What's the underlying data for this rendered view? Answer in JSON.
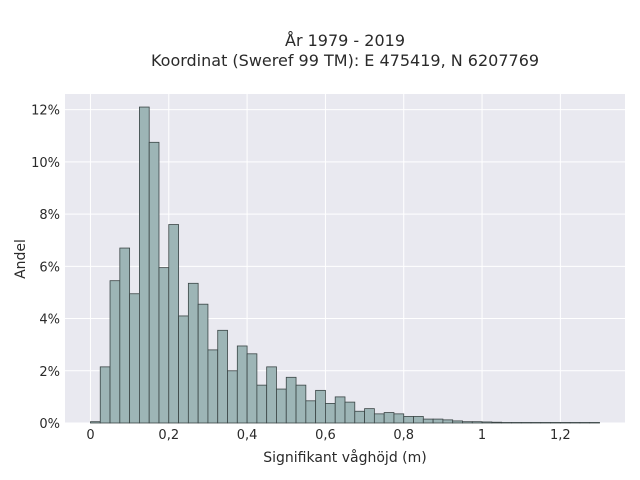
{
  "chart_data": {
    "type": "bar",
    "title": "År 1979 - 2019",
    "subtitle": "Koordinat (Sweref 99 TM): E 475419, N 6207769",
    "xlabel": "Signifikant våghöjd (m)",
    "ylabel": "Andel",
    "xlim": [
      -0.065,
      1.365
    ],
    "ylim": [
      0,
      12.6
    ],
    "x_ticks": [
      0,
      0.2,
      0.4,
      0.6,
      0.8,
      1,
      1.2
    ],
    "x_tick_labels": [
      "0",
      "0,2",
      "0,4",
      "0,6",
      "0,8",
      "1",
      "1,2"
    ],
    "y_ticks": [
      0,
      2,
      4,
      6,
      8,
      10,
      12
    ],
    "y_tick_labels": [
      "0%",
      "2%",
      "4%",
      "6%",
      "8%",
      "10%",
      "12%"
    ],
    "grid": true,
    "bin_width": 0.025,
    "bins_start": [
      0,
      0.025,
      0.05,
      0.075,
      0.1,
      0.125,
      0.15,
      0.175,
      0.2,
      0.225,
      0.25,
      0.275,
      0.3,
      0.325,
      0.35,
      0.375,
      0.4,
      0.425,
      0.45,
      0.475,
      0.5,
      0.525,
      0.55,
      0.575,
      0.6,
      0.625,
      0.65,
      0.675,
      0.7,
      0.725,
      0.75,
      0.775,
      0.8,
      0.825,
      0.85,
      0.875,
      0.9,
      0.925,
      0.95,
      0.975,
      1.0,
      1.025,
      1.05,
      1.075,
      1.1,
      1.125,
      1.15,
      1.175,
      1.2,
      1.225,
      1.25,
      1.275
    ],
    "values": [
      0.05,
      2.15,
      5.45,
      6.7,
      4.95,
      12.1,
      10.75,
      5.95,
      7.6,
      4.1,
      5.35,
      4.55,
      2.8,
      3.55,
      2.0,
      2.95,
      2.65,
      1.45,
      2.15,
      1.3,
      1.75,
      1.45,
      0.85,
      1.25,
      0.75,
      1.0,
      0.8,
      0.45,
      0.55,
      0.35,
      0.4,
      0.35,
      0.25,
      0.25,
      0.15,
      0.15,
      0.12,
      0.08,
      0.05,
      0.05,
      0.04,
      0.03,
      0.02,
      0.02,
      0.02,
      0.02,
      0.02,
      0.02,
      0.02,
      0.02,
      0.02,
      0.02
    ],
    "colors": {
      "bar_fill": "#9db5b6",
      "bar_stroke": "#3a4545",
      "plot_background": "#e9e9f0",
      "grid": "#ffffff"
    }
  }
}
